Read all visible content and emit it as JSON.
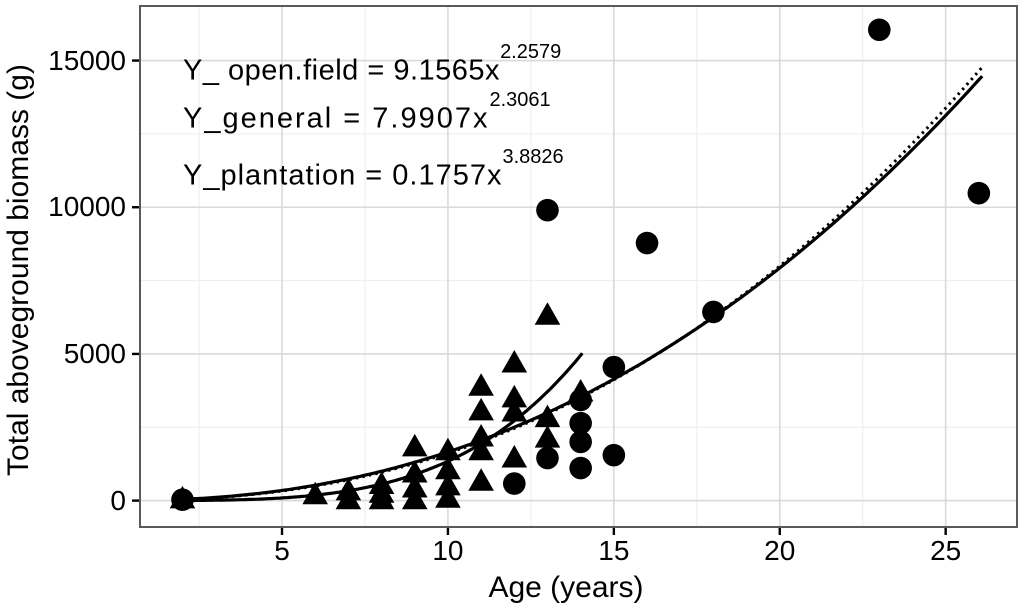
{
  "chart_data": {
    "type": "scatter",
    "title": "",
    "xlabel": "Age (years)",
    "ylabel": "Total aboveground biomass (g)",
    "xlim": [
      0.72,
      27.15
    ],
    "ylim": [
      -900,
      16860
    ],
    "x_ticks": [
      5,
      10,
      15,
      20,
      25
    ],
    "x_minor_ticks": [
      2.5,
      7.5,
      12.5,
      17.5,
      22.5
    ],
    "y_ticks": [
      0,
      5000,
      10000,
      15000
    ],
    "y_minor_ticks": [
      2500,
      7500,
      12500
    ],
    "grid": "major and minor gridlines, light gray on white",
    "legend": "none",
    "series": [
      {
        "name": "open.field",
        "marker": "circle",
        "color": "#000000",
        "points": [
          [
            2,
            30
          ],
          [
            12,
            580
          ],
          [
            13,
            1450
          ],
          [
            13,
            9900
          ],
          [
            14,
            3430
          ],
          [
            14,
            2640
          ],
          [
            14,
            2000
          ],
          [
            14,
            1110
          ],
          [
            15,
            4550
          ],
          [
            15,
            1550
          ],
          [
            16,
            8780
          ],
          [
            18,
            6430
          ],
          [
            23,
            16050
          ],
          [
            26,
            10480
          ]
        ]
      },
      {
        "name": "plantation",
        "marker": "triangle",
        "color": "#000000",
        "points": [
          [
            2,
            60
          ],
          [
            6,
            200
          ],
          [
            7,
            330
          ],
          [
            7,
            30
          ],
          [
            8,
            550
          ],
          [
            8,
            250
          ],
          [
            8,
            30
          ],
          [
            9,
            1830
          ],
          [
            9,
            940
          ],
          [
            9,
            430
          ],
          [
            9,
            30
          ],
          [
            10,
            1700
          ],
          [
            10,
            1050
          ],
          [
            10,
            500
          ],
          [
            10,
            80
          ],
          [
            11,
            3900
          ],
          [
            11,
            3060
          ],
          [
            11,
            2170
          ],
          [
            11,
            1700
          ],
          [
            11,
            660
          ],
          [
            12,
            4690
          ],
          [
            12,
            3500
          ],
          [
            12,
            3020
          ],
          [
            12,
            1450
          ],
          [
            13,
            6320
          ],
          [
            13,
            2830
          ],
          [
            13,
            2130
          ],
          [
            14,
            3700
          ]
        ]
      }
    ],
    "curves": [
      {
        "name": "open.field fit",
        "coef": 9.1565,
        "exp": 2.2579,
        "x_range": [
          1.9,
          26.1
        ],
        "style": "solid"
      },
      {
        "name": "general fit",
        "coef": 7.9907,
        "exp": 2.3061,
        "x_range": [
          1.9,
          26.1
        ],
        "style": "dotted"
      },
      {
        "name": "plantation fit",
        "coef": 0.1757,
        "exp": 3.8826,
        "x_range": [
          1.9,
          14.05
        ],
        "style": "solid"
      }
    ],
    "equations": [
      {
        "main": "Y_ open.field = 9.1565x",
        "sup": "2.2579"
      },
      {
        "main": "Y_general = 7.9907x",
        "sup": "2.3061"
      },
      {
        "main": "Y_plantation = 0.1757x",
        "sup": "3.8826"
      }
    ],
    "colors": {
      "marker": "#000000",
      "curve": "#000000",
      "grid_major": "#d9d9d9",
      "grid_minor": "#efefef",
      "panel_border": "#595959",
      "background": "#ffffff",
      "text": "#000000"
    }
  }
}
